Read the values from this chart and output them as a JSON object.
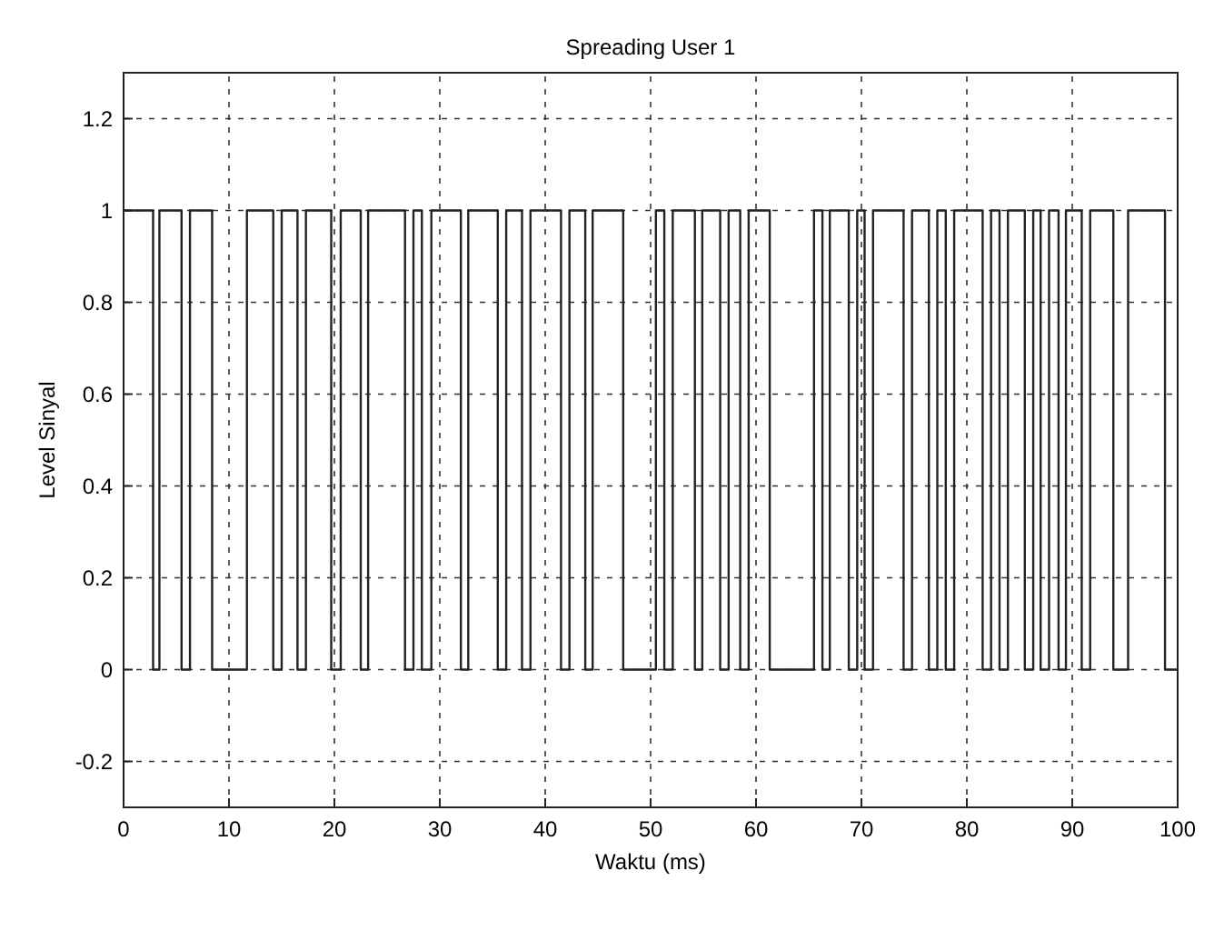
{
  "chart_data": {
    "type": "step",
    "title": "Spreading User 1",
    "xlabel": "Waktu (ms)",
    "ylabel": "Level Sinyal",
    "x": [
      0,
      2.8,
      3.4,
      5.5,
      6.3,
      8.4,
      11.7,
      14.2,
      15,
      16.5,
      17.3,
      19.7,
      20.6,
      22.5,
      23.2,
      26.7,
      27.5,
      28.3,
      29.2,
      32,
      32.7,
      35.5,
      36.3,
      37.8,
      38.6,
      41.5,
      42.3,
      43.8,
      44.5,
      47.4,
      50.5,
      51.3,
      52.1,
      54.2,
      54.9,
      56.6,
      57.4,
      58.5,
      59.3,
      61.3,
      65.5,
      66.3,
      67,
      68.8,
      69.6,
      70.3,
      71.1,
      74,
      74.8,
      76.4,
      77.2,
      78,
      78.8,
      81.5,
      82.3,
      83.1,
      83.9,
      85.5,
      86.3,
      87,
      87.8,
      88.7,
      89.4,
      90.9,
      91.7,
      93.9,
      95.3,
      98.8,
      100
    ],
    "series": [
      {
        "color": "#222222",
        "values": [
          1,
          0,
          1,
          0,
          1,
          0,
          1,
          0,
          1,
          0,
          1,
          0,
          1,
          0,
          1,
          0,
          1,
          0,
          1,
          0,
          1,
          0,
          1,
          0,
          1,
          0,
          1,
          0,
          1,
          0,
          1,
          0,
          1,
          0,
          1,
          0,
          1,
          0,
          1,
          0,
          1,
          0,
          1,
          0,
          1,
          0,
          1,
          0,
          1,
          0,
          1,
          0,
          1,
          0,
          1,
          0,
          1,
          0,
          1,
          0,
          1,
          0,
          1,
          0,
          1,
          0,
          1,
          0,
          0
        ]
      }
    ],
    "xlim": [
      0,
      100
    ],
    "ylim": [
      -0.3,
      1.3
    ],
    "xticks": [
      0,
      10,
      20,
      30,
      40,
      50,
      60,
      70,
      80,
      90,
      100
    ],
    "yticks": [
      -0.2,
      0,
      0.2,
      0.4,
      0.6,
      0.8,
      1,
      1.2
    ],
    "grid": true,
    "line_style": "solid"
  }
}
